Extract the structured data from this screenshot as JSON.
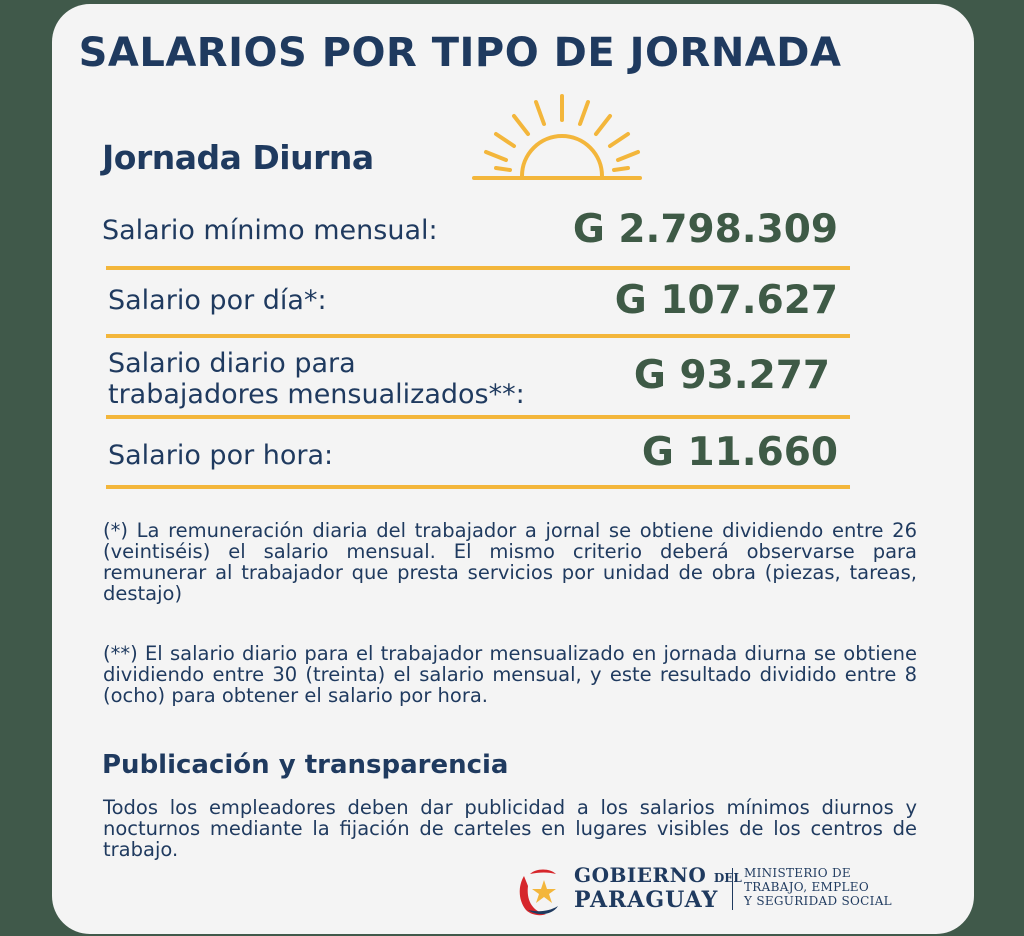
{
  "title": "SALARIOS POR TIPO DE JORNADA",
  "section": "Jornada Diurna",
  "rows": [
    {
      "label": "Salario mínimo mensual:",
      "value": "G 2.798.309"
    },
    {
      "label": "Salario por día*:",
      "value": "G 107.627"
    },
    {
      "label_line1": "Salario diario para",
      "label_line2": "trabajadores mensualizados**:",
      "value": "G 93.277"
    },
    {
      "label": "Salario por hora:",
      "value": "G 11.660"
    }
  ],
  "notes": {
    "note1": "(*) La remuneración diaria del trabajador a jornal se obtiene dividiendo entre 26 (veintiséis) el salario mensual. El mismo criterio deberá observarse para remunerar al trabajador que presta servicios por unidad de obra (piezas, tareas, destajo)",
    "note2": "(**) El salario diario para el trabajador mensualizado en jornada diurna se obtiene dividiendo entre 30 (treinta) el salario mensual, y este resultado dividido entre 8 (ocho) para obtener el salario por hora."
  },
  "publication": {
    "title": "Publicación y transparencia",
    "text": "Todos los empleadores deben dar publicidad a los salarios mínimos diurnos y nocturnos mediante la fijación de carteles en lugares visibles de los centros de trabajo."
  },
  "footer": {
    "gobierno": "GOBIERNO",
    "del": "DEL",
    "paraguay": "PARAGUAY",
    "ministerio_l1": "MINISTERIO DE",
    "ministerio_l2": "TRABAJO, EMPLEO",
    "ministerio_l3": "Y SEGURIDAD SOCIAL"
  },
  "colors": {
    "background": "#40594a",
    "card": "#f4f4f4",
    "navy": "#1f3a5f",
    "green_value": "#3e5a46",
    "accent_yellow": "#f3b63b"
  },
  "icons": [
    "sun-icon",
    "paraguay-star-logo-icon"
  ]
}
